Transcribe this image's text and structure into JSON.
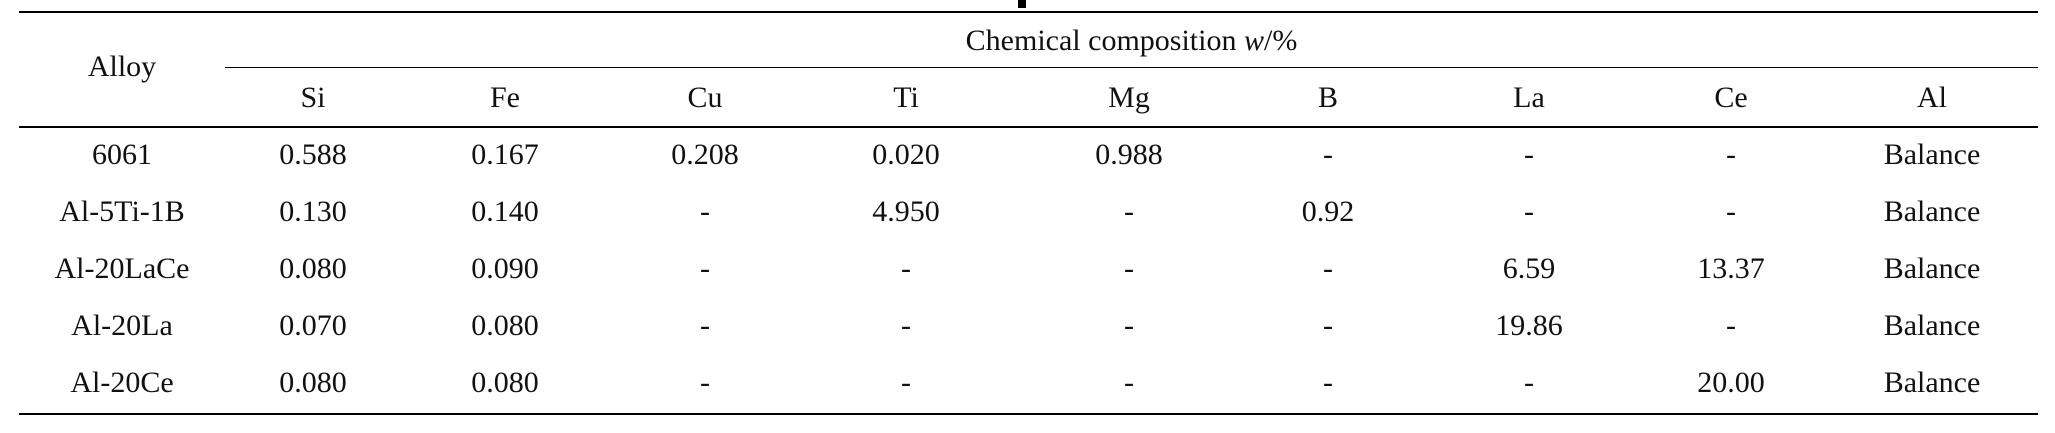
{
  "table": {
    "header": {
      "alloy_label": "Alloy",
      "group_prefix": "Chemical composition ",
      "group_var": "w",
      "group_suffix": "/%",
      "columns": [
        "Si",
        "Fe",
        "Cu",
        "Ti",
        "Mg",
        "B",
        "La",
        "Ce",
        "Al"
      ]
    },
    "rows": [
      {
        "alloy": "6061",
        "values": [
          "0.588",
          "0.167",
          "0.208",
          "0.020",
          "0.988",
          "-",
          "-",
          "-",
          "Balance"
        ]
      },
      {
        "alloy": "Al-5Ti-1B",
        "values": [
          "0.130",
          "0.140",
          "-",
          "4.950",
          "-",
          "0.92",
          "-",
          "-",
          "Balance"
        ]
      },
      {
        "alloy": "Al-20LaCe",
        "values": [
          "0.080",
          "0.090",
          "-",
          "-",
          "-",
          "-",
          "6.59",
          "13.37",
          "Balance"
        ]
      },
      {
        "alloy": "Al-20La",
        "values": [
          "0.070",
          "0.080",
          "-",
          "-",
          "-",
          "-",
          "19.86",
          "-",
          "Balance"
        ]
      },
      {
        "alloy": "Al-20Ce",
        "values": [
          "0.080",
          "0.080",
          "-",
          "-",
          "-",
          "-",
          "-",
          "20.00",
          "Balance"
        ]
      }
    ]
  }
}
